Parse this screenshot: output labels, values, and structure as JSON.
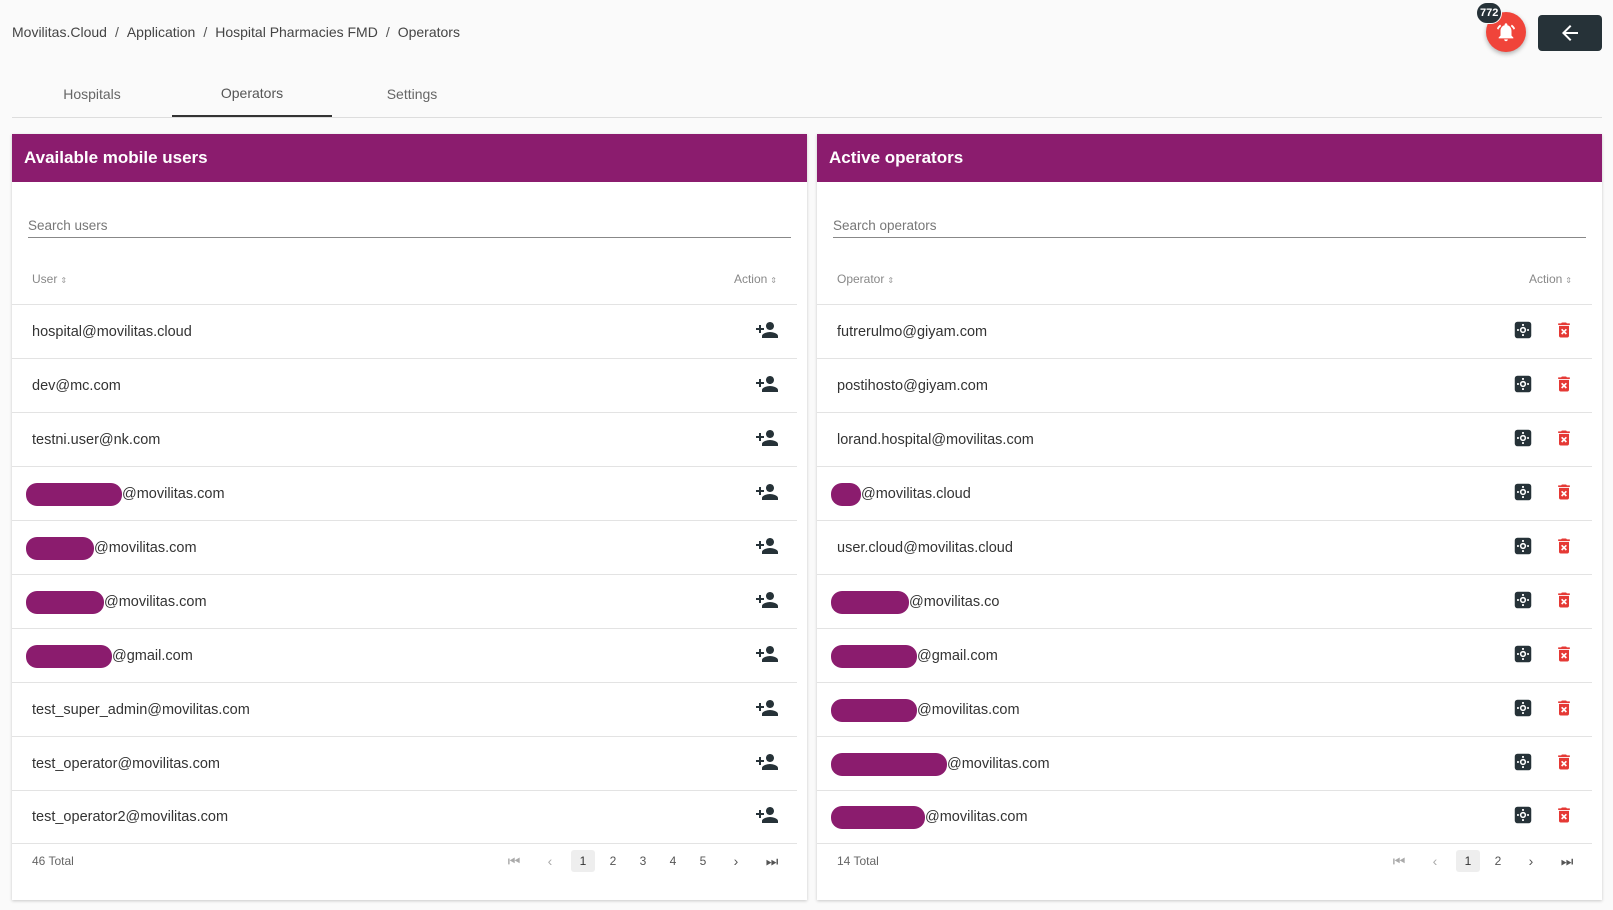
{
  "breadcrumb": [
    "Movilitas.Cloud",
    "Application",
    "Hospital Pharmacies FMD",
    "Operators"
  ],
  "notifications": {
    "count": "772"
  },
  "tabs": [
    "Hospitals",
    "Operators",
    "Settings"
  ],
  "left_panel": {
    "title": "Available mobile users",
    "search_placeholder": "Search users",
    "col_user": "User",
    "col_action": "Action",
    "total": "46 Total",
    "pages": [
      "1",
      "2",
      "3",
      "4",
      "5"
    ],
    "rows": [
      "hospital@movilitas.cloud",
      "dev@mc.com",
      "testni.user@nk.com",
      "@movilitas.com",
      "@movilitas.com",
      "@movilitas.com",
      "@gmail.com",
      "test_super_admin@movilitas.com",
      "test_operator@movilitas.com",
      "test_operator2@movilitas.com"
    ]
  },
  "right_panel": {
    "title": "Active operators",
    "search_placeholder": "Search operators",
    "col_operator": "Operator",
    "col_action": "Action",
    "total": "14 Total",
    "pages": [
      "1",
      "2"
    ],
    "rows": [
      "futrerulmo@giyam.com",
      "postihosto@giyam.com",
      "lorand.hospital@movilitas.com",
      "@movilitas.cloud",
      "user.cloud@movilitas.cloud",
      "@movilitas.co",
      "@gmail.com",
      "@movilitas.com",
      "@movilitas.com",
      "@movilitas.com"
    ]
  },
  "colors": {
    "header": "#8b1c6e",
    "delete": "#e53935",
    "dark": "#263238",
    "bell": "#f0443a"
  }
}
